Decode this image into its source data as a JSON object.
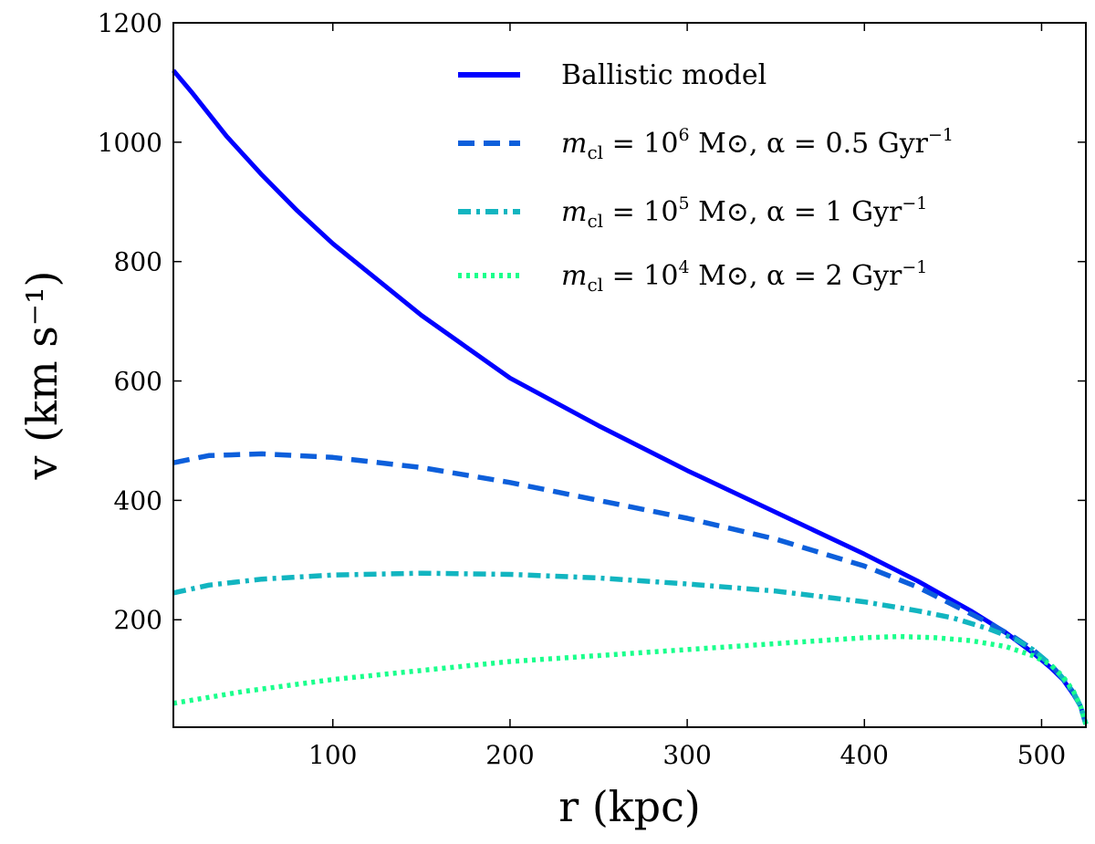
{
  "chart_data": {
    "type": "line",
    "title": "",
    "xlabel": "r (kpc)",
    "ylabel": "v (km s⁻¹)",
    "xlim": [
      10,
      525
    ],
    "ylim": [
      20,
      1200
    ],
    "xticks": [
      100,
      200,
      300,
      400,
      500
    ],
    "yticks": [
      200,
      400,
      600,
      800,
      1000,
      1200
    ],
    "grid": false,
    "legend_position": "top-right",
    "series": [
      {
        "name": "Ballistic model",
        "legend": {
          "pre": "Ballistic model"
        },
        "color": "#0000ff",
        "style": "solid",
        "x": [
          10,
          20,
          40,
          60,
          80,
          100,
          150,
          200,
          250,
          300,
          350,
          400,
          430,
          460,
          480,
          495,
          505,
          512,
          518,
          522,
          525
        ],
        "y": [
          1120,
          1085,
          1010,
          945,
          885,
          830,
          710,
          605,
          525,
          450,
          380,
          310,
          265,
          215,
          178,
          145,
          120,
          100,
          75,
          55,
          25
        ]
      },
      {
        "name": "m_cl = 10^6 M_sun, alpha = 0.5 Gyr^-1",
        "legend": {
          "pre": "m",
          "sub": "cl",
          "mid1": " = 10",
          "sup1": "6",
          "mid2": " M⊙,  α = 0.5 Gyr",
          "sup2": "−1"
        },
        "color": "#0d5fdb",
        "style": "dashed",
        "x": [
          10,
          30,
          60,
          100,
          150,
          200,
          250,
          300,
          350,
          400,
          430,
          450,
          470,
          485,
          495,
          505,
          512,
          518,
          522,
          525
        ],
        "y": [
          463,
          475,
          478,
          472,
          455,
          430,
          400,
          370,
          335,
          290,
          255,
          225,
          195,
          170,
          150,
          125,
          102,
          78,
          55,
          25
        ]
      },
      {
        "name": "m_cl = 10^5 M_sun, alpha = 1 Gyr^-1",
        "legend": {
          "pre": "m",
          "sub": "cl",
          "mid1": " = 10",
          "sup1": "5",
          "mid2": " M⊙,  α = 1 Gyr",
          "sup2": "−1"
        },
        "color": "#12b5c0",
        "style": "dashdot",
        "x": [
          10,
          30,
          60,
          100,
          150,
          200,
          250,
          300,
          350,
          400,
          430,
          450,
          470,
          485,
          495,
          505,
          512,
          518,
          522,
          525
        ],
        "y": [
          245,
          258,
          268,
          275,
          278,
          276,
          270,
          260,
          248,
          230,
          215,
          203,
          185,
          168,
          150,
          125,
          102,
          78,
          55,
          25
        ]
      },
      {
        "name": "m_cl = 10^4 M_sun, alpha = 2 Gyr^-1",
        "legend": {
          "pre": "m",
          "sub": "cl",
          "mid1": " = 10",
          "sup1": "4",
          "mid2": " M⊙,  α = 2 Gyr",
          "sup2": "−1"
        },
        "color": "#1aff8c",
        "style": "dotted",
        "x": [
          10,
          50,
          100,
          150,
          200,
          250,
          300,
          350,
          400,
          420,
          440,
          460,
          480,
          495,
          505,
          512,
          518,
          522,
          525
        ],
        "y": [
          60,
          80,
          100,
          115,
          130,
          140,
          150,
          160,
          170,
          172,
          170,
          165,
          155,
          140,
          125,
          105,
          80,
          55,
          25
        ]
      }
    ]
  }
}
